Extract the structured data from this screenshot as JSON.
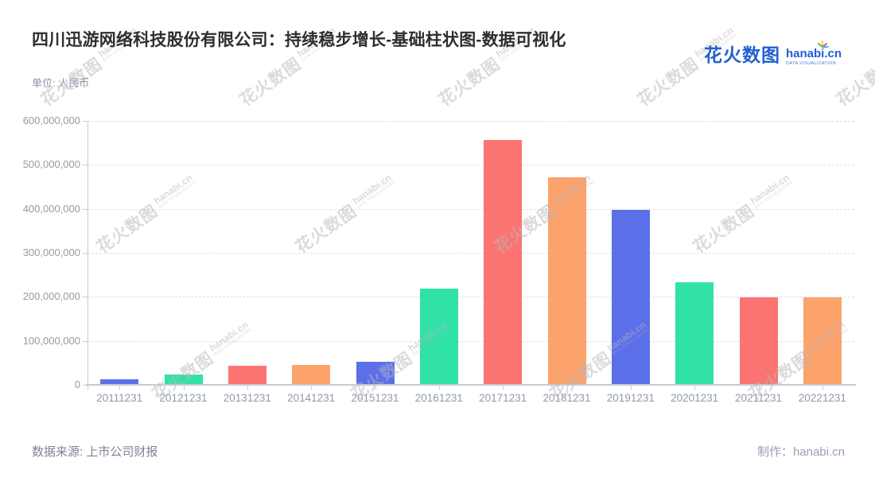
{
  "header": {
    "unit_label": "单位: 人民币"
  },
  "brand": {
    "logo_cjk": "花火数图",
    "logo_latin": "hanabi.cn",
    "logo_sub": "DATA VISUALIZATION"
  },
  "watermark": {
    "cjk": "花火数图",
    "latin": "hanabi.cn",
    "sub": "DATA VISUALIZATION"
  },
  "footer": {
    "source": "数据来源: 上市公司财报",
    "credit": "制作：hanabi.cn"
  },
  "chart_data": {
    "type": "bar",
    "title": "四川迅游网络科技股份有限公司：持续稳步增长-基础柱状图-数据可视化",
    "unit_label": "单位: 人民币",
    "categories": [
      "20111231",
      "20121231",
      "20131231",
      "20141231",
      "20151231",
      "20161231",
      "20171231",
      "20181231",
      "20191231",
      "20201231",
      "20211231",
      "20221231"
    ],
    "values": [
      13000000,
      24000000,
      44000000,
      46000000,
      52000000,
      218000000,
      557000000,
      471000000,
      397000000,
      234000000,
      198000000,
      198000000
    ],
    "bar_colors": [
      "#5b6fe9",
      "#30e2a8",
      "#fc7471",
      "#fca26b"
    ],
    "ylim": [
      0,
      600000000
    ],
    "y_tick_labels": [
      "0",
      "100,000,000",
      "200,000,000",
      "300,000,000",
      "400,000,000",
      "500,000,000",
      "600,000,000"
    ],
    "xlabel": "",
    "ylabel": "人民币",
    "grid": "horizontal-dashed",
    "legend": "none",
    "axis_color": "#c7cbd4",
    "gridline_color": "#dcdfe5",
    "x_label_color": "#8e99ae",
    "y_label_color": "#9a9a9a"
  }
}
